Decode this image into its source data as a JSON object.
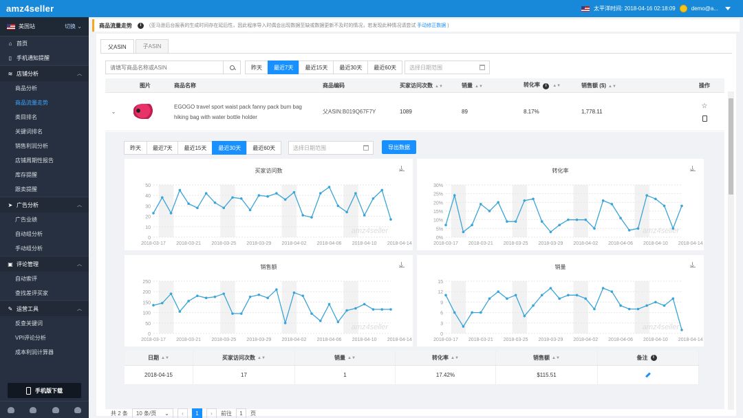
{
  "header": {
    "logo": "amz4seller",
    "time_label": "太平洋时间: 2018-04-16 02:18:09",
    "user": "demo@a..."
  },
  "sidebar": {
    "site": "美国站",
    "switch": "切换",
    "items": [
      {
        "label": "首页",
        "icon": "home-icon"
      },
      {
        "label": "手机通知提醒",
        "icon": "mobile-icon"
      }
    ],
    "groups": [
      {
        "label": "店铺分析",
        "icon": "chart-icon",
        "subs": [
          "商品分析",
          "商品流量走势",
          "类目排名",
          "关键词排名",
          "销售利润分析",
          "店铺周期性报告",
          "库存提醒",
          "跟卖提醒"
        ]
      },
      {
        "label": "广告分析",
        "icon": "plane-icon",
        "subs": [
          "广告业绩",
          "自动组分析",
          "手动组分析"
        ]
      },
      {
        "label": "评论管理",
        "icon": "lock-icon",
        "subs": [
          "自动索评",
          "查找差评买家"
        ]
      },
      {
        "label": "运营工具",
        "icon": "wrench-icon",
        "subs": [
          "反查关键词",
          "VPI评论分析",
          "成本利润计算器"
        ]
      }
    ],
    "download": "手机版下载"
  },
  "page": {
    "title": "商品流量走势",
    "note": "(亚马逊后台报表的生成时间存在延后性，因此程序导入时偶会出现数据至缺或数据更新不及时的情况，若发现此种情况请尝试",
    "note_link": "手动修正数据",
    "note_end": ")"
  },
  "tabs": [
    "父ASIN",
    "子ASIN"
  ],
  "search": {
    "placeholder": "请填写商品名称或ASIN"
  },
  "ranges": [
    "昨天",
    "最近7天",
    "最近15天",
    "最近30天",
    "最近60天"
  ],
  "date_placeholder": "选择日期范围",
  "table": {
    "headers": [
      "图片",
      "商品名称",
      "商品编码",
      "买家访问次数",
      "销量",
      "转化率",
      "销售额 ($)",
      "操作"
    ],
    "row": {
      "name": "EGOGO travel sport waist pack fanny pack bum bag hiking bag with water bottle holder",
      "code": "父ASIN:B019Q67F7Y",
      "visits": "1089",
      "sales": "89",
      "rate": "8.17%",
      "revenue": "1,778.11"
    }
  },
  "detail": {
    "export": "导出数据"
  },
  "charts": [
    {
      "title": "买家访问数",
      "yticks": [
        "50",
        "40",
        "30",
        "20",
        "10",
        "0"
      ],
      "ymax": 50,
      "values": [
        23,
        38,
        23,
        45,
        32,
        28,
        42,
        33,
        28,
        38,
        37,
        26,
        40,
        39,
        42,
        36,
        43,
        21,
        19,
        42,
        48,
        30,
        24,
        42,
        21,
        37,
        45,
        17
      ]
    },
    {
      "title": "转化率",
      "yticks": [
        "30%",
        "25%",
        "20%",
        "15%",
        "10%",
        "5%",
        "0%"
      ],
      "ymax": 30,
      "values": [
        7,
        24,
        3,
        7,
        19,
        15,
        20,
        9,
        9,
        21,
        22,
        9,
        3,
        7,
        10,
        10,
        10,
        5,
        21,
        19,
        11,
        4,
        5,
        24,
        22,
        18,
        5,
        18
      ]
    },
    {
      "title": "销售额",
      "yticks": [
        "250",
        "200",
        "150",
        "100",
        "50",
        "0"
      ],
      "ymax": 250,
      "values": [
        135,
        145,
        190,
        105,
        155,
        180,
        170,
        175,
        190,
        95,
        95,
        175,
        185,
        170,
        210,
        50,
        195,
        180,
        95,
        60,
        140,
        55,
        110,
        120,
        140,
        115,
        115,
        115
      ]
    },
    {
      "title": "销量",
      "yticks": [
        "15",
        "12",
        "9",
        "6",
        "3",
        "0"
      ],
      "ymax": 15,
      "values": [
        11,
        6,
        2,
        6,
        6,
        10,
        12,
        10,
        11,
        5,
        8,
        11,
        13,
        10,
        11,
        11,
        10,
        7,
        13,
        12,
        8,
        7,
        7,
        8,
        9,
        8,
        10,
        1
      ]
    }
  ],
  "xticks": [
    "2018-03-17",
    "2018-03-21",
    "2018-03-25",
    "2018-03-29",
    "2018-04-02",
    "2018-04-06",
    "2018-04-10",
    "2018-04-14"
  ],
  "watermark": "amz4seller",
  "sub_table": {
    "headers": [
      "日期",
      "买家访问次数",
      "销量",
      "转化率",
      "销售额",
      "备注"
    ],
    "row": [
      "2018-04-15",
      "17",
      "1",
      "17.42%",
      "$115.51"
    ]
  },
  "pager": {
    "total": "共 2 条",
    "size": "10 条/页",
    "page": "1",
    "goto": "前往",
    "goto_val": "1",
    "unit": "页"
  }
}
